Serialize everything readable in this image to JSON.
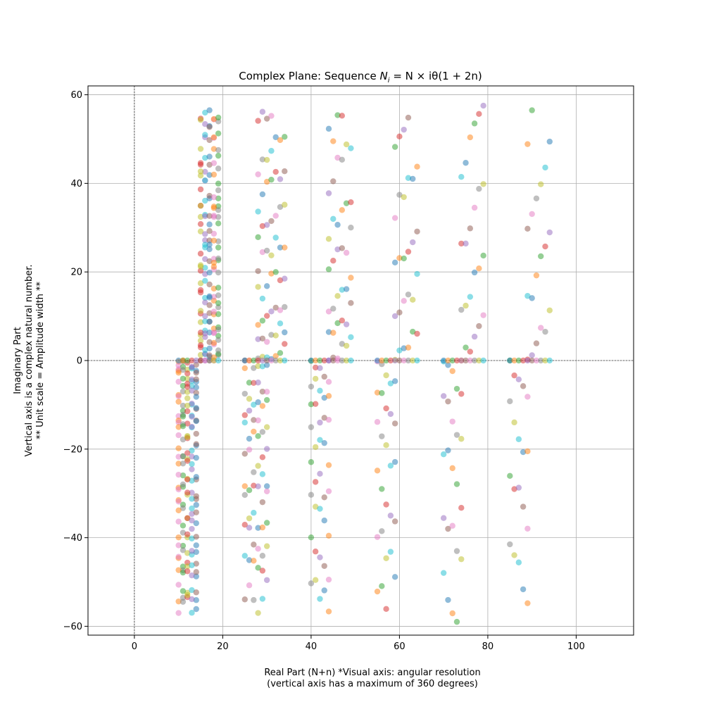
{
  "chart_data": {
    "type": "scatter",
    "title_prefix": "Complex Plane: Sequence ",
    "title_math": "N",
    "title_math_sub": "i",
    "title_math_rest": " = N × iθ(1 + 2n)",
    "xlabel_lines": [
      "Real Part (N+n) *Visual axis: angular resolution",
      "(vertical axis has a maximum of 360 degrees)"
    ],
    "ylabel_lines": [
      "Imaginary Part",
      "Vertical axis is a complex natural number.",
      "** Unit scale = Amplitude width **"
    ],
    "xlim": [
      -10.5,
      113
    ],
    "ylim": [
      -62,
      62
    ],
    "xticks": [
      0,
      20,
      40,
      60,
      80,
      100
    ],
    "yticks": [
      -60,
      -40,
      -20,
      0,
      20,
      40,
      60
    ],
    "xtick_labels": [
      "0",
      "20",
      "40",
      "60",
      "80",
      "100"
    ],
    "ytick_labels": [
      "−60",
      "−40",
      "−20",
      "0",
      "20",
      "40",
      "60"
    ],
    "grid": true,
    "zero_lines": "dashed",
    "marker_alpha": 0.5,
    "colors": [
      "#1f77b4",
      "#ff7f0e",
      "#2ca02c",
      "#d62728",
      "#9467bd",
      "#8c564b",
      "#e377c2",
      "#7f7f7f",
      "#bcbd22",
      "#17becf"
    ],
    "groups": [
      {
        "x": [
          10,
          11,
          12,
          13,
          14
        ],
        "ymin": -57,
        "ymax": 0,
        "count": 160,
        "phase": 1
      },
      {
        "x": [
          15,
          16,
          17,
          18,
          19
        ],
        "ymin": 0,
        "ymax": 56.5,
        "count": 150,
        "phase": 3
      },
      {
        "x": [
          25,
          26,
          27,
          28,
          29,
          30
        ],
        "ymin": -57,
        "ymax": 0,
        "count": 65,
        "phase": 5
      },
      {
        "x": [
          28,
          29,
          30,
          31,
          32,
          33,
          34
        ],
        "ymin": 0,
        "ymax": 56.5,
        "count": 60,
        "phase": 7
      },
      {
        "x": [
          40,
          41,
          42,
          43,
          44
        ],
        "ymin": -57,
        "ymax": 0,
        "count": 40,
        "phase": 2
      },
      {
        "x": [
          44,
          45,
          46,
          47,
          48,
          49
        ],
        "ymin": 0,
        "ymax": 56.5,
        "count": 40,
        "phase": 4
      },
      {
        "x": [
          55,
          56,
          57,
          58,
          59
        ],
        "ymin": -57,
        "ymax": 0,
        "count": 28,
        "phase": 6
      },
      {
        "x": [
          59,
          60,
          61,
          62,
          63,
          64
        ],
        "ymin": 0,
        "ymax": 56.5,
        "count": 28,
        "phase": 8
      },
      {
        "x": [
          70,
          71,
          72,
          73,
          74
        ],
        "ymin": -59,
        "ymax": 0,
        "count": 24,
        "phase": 9
      },
      {
        "x": [
          74,
          75,
          76,
          77,
          78,
          79
        ],
        "ymin": 0,
        "ymax": 59,
        "count": 24,
        "phase": 1
      },
      {
        "x": [
          85,
          86,
          87,
          88,
          89
        ],
        "ymin": -57,
        "ymax": 0,
        "count": 20,
        "phase": 2
      },
      {
        "x": [
          89,
          90,
          91,
          92,
          93,
          94
        ],
        "ymin": 0,
        "ymax": 56.5,
        "count": 20,
        "phase": 3
      }
    ],
    "baseline_points": {
      "x": [
        10,
        11,
        12,
        13,
        14,
        15,
        16,
        17,
        18,
        19,
        25,
        26,
        27,
        28,
        29,
        30,
        31,
        32,
        33,
        34,
        40,
        41,
        42,
        43,
        44,
        45,
        46,
        47,
        48,
        49,
        55,
        56,
        57,
        58,
        59,
        60,
        61,
        62,
        63,
        64,
        70,
        71,
        72,
        73,
        74,
        75,
        76,
        77,
        78,
        79,
        85,
        86,
        87,
        88,
        89,
        90,
        91,
        92,
        93,
        94
      ],
      "y": 0
    }
  }
}
